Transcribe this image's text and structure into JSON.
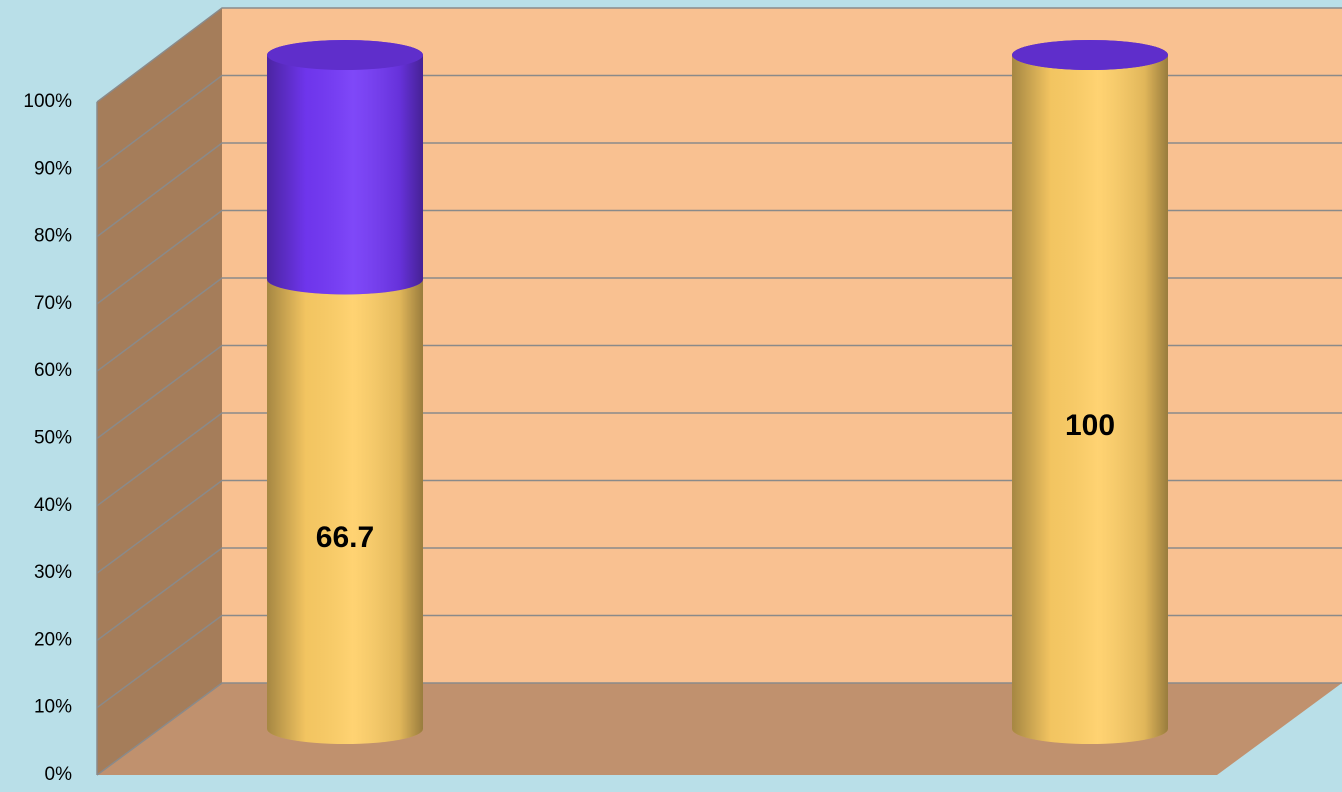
{
  "chart_data": {
    "type": "cylinder-stacked-100",
    "categories": [
      null,
      null
    ],
    "series": [
      {
        "color": "#ffcf66",
        "values": [
          66.7,
          100
        ]
      },
      {
        "color": "#7438f8",
        "values": [
          33.3,
          0
        ]
      }
    ],
    "ylim": [
      0,
      100
    ],
    "yticks": [
      {
        "value": 0,
        "label": "0%"
      },
      {
        "value": 10,
        "label": "10%"
      },
      {
        "value": 20,
        "label": "20%"
      },
      {
        "value": 30,
        "label": "30%"
      },
      {
        "value": 40,
        "label": "40%"
      },
      {
        "value": 50,
        "label": "50%"
      },
      {
        "value": 60,
        "label": "60%"
      },
      {
        "value": 70,
        "label": "70%"
      },
      {
        "value": 80,
        "label": "80%"
      },
      {
        "value": 90,
        "label": "90%"
      },
      {
        "value": 100,
        "label": "100%"
      }
    ],
    "grid": true
  }
}
